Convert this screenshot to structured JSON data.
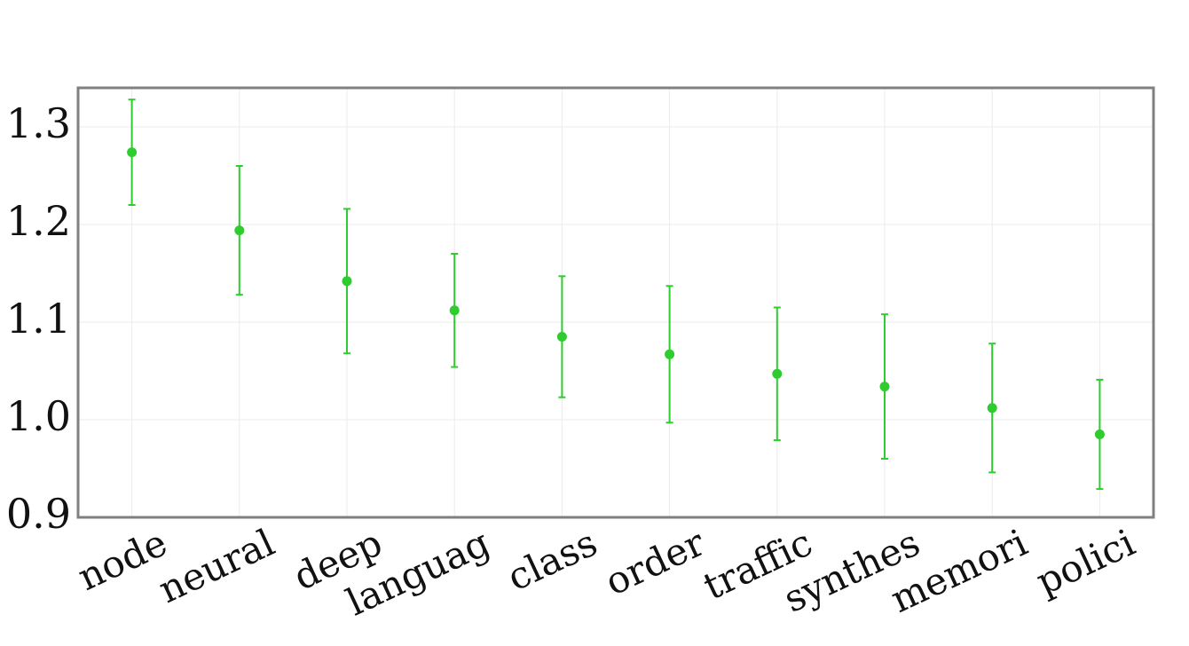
{
  "chart_data": {
    "type": "errorbar",
    "categories": [
      "node",
      "neural",
      "deep",
      "languag",
      "class",
      "order",
      "traffic",
      "synthes",
      "memori",
      "polici"
    ],
    "values": [
      1.274,
      1.194,
      1.142,
      1.112,
      1.085,
      1.067,
      1.047,
      1.034,
      1.012,
      0.985
    ],
    "errors": [
      0.054,
      0.066,
      0.074,
      0.058,
      0.062,
      0.07,
      0.068,
      0.074,
      0.066,
      0.056
    ],
    "color": "#2ecc2e",
    "ylim": [
      0.9,
      1.34
    ],
    "yticks": [
      0.9,
      {
        "value": 1,
        "label": "1.0"
      },
      1.1,
      1.2,
      1.3
    ],
    "grid": true
  }
}
